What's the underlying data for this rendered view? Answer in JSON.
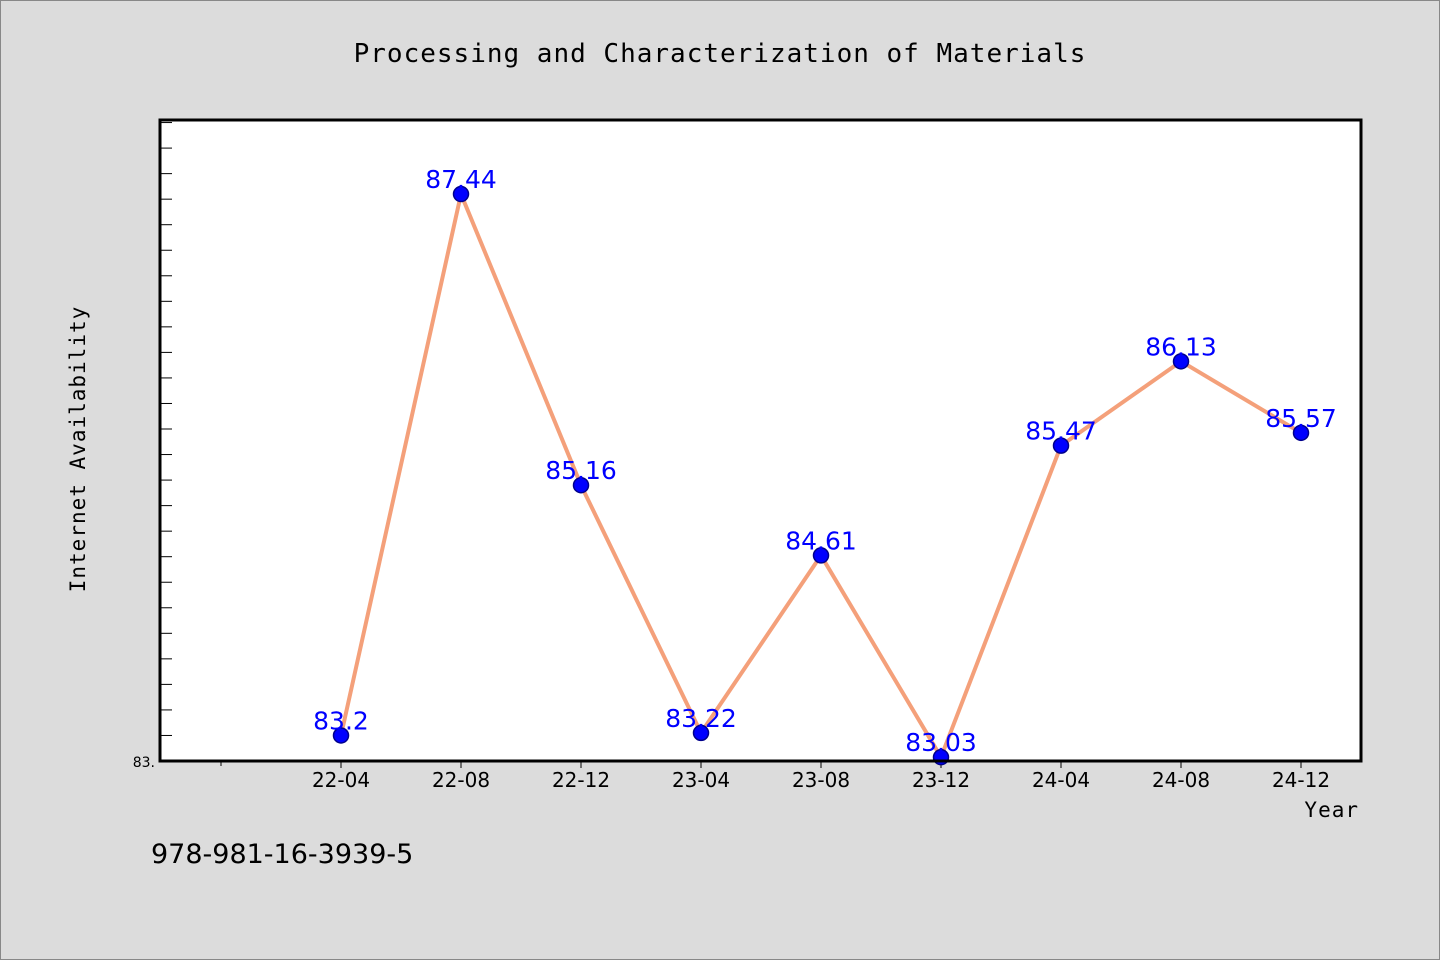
{
  "chart_data": {
    "type": "line",
    "title": "Processing and Characterization of Materials",
    "xlabel": "Year",
    "ylabel": "Internet Availability",
    "categories": [
      "22-04",
      "22-08",
      "22-12",
      "23-04",
      "23-08",
      "23-12",
      "24-04",
      "24-08",
      "24-12"
    ],
    "series": [
      {
        "values": [
          83.2,
          87.44,
          85.16,
          83.22,
          84.61,
          83.03,
          85.47,
          86.13,
          85.57
        ],
        "labels": [
          "83.2",
          "87.44",
          "85.16",
          "83.22",
          "84.61",
          "83.03",
          "85.47",
          "86.13",
          "85.57"
        ]
      }
    ],
    "ylim": [
      83.0,
      88.02
    ],
    "y_tick_labels": [
      "83."
    ],
    "grid": false,
    "legend": "none",
    "colors": {
      "line": "#f4a07a",
      "marker": "#0000ff",
      "marker_edge": "#00008b",
      "data_label": "#0000ff",
      "plot_background": "#ffffff",
      "figure_background": "#dcdcdc"
    }
  },
  "footnote": "978-981-16-3939-5"
}
